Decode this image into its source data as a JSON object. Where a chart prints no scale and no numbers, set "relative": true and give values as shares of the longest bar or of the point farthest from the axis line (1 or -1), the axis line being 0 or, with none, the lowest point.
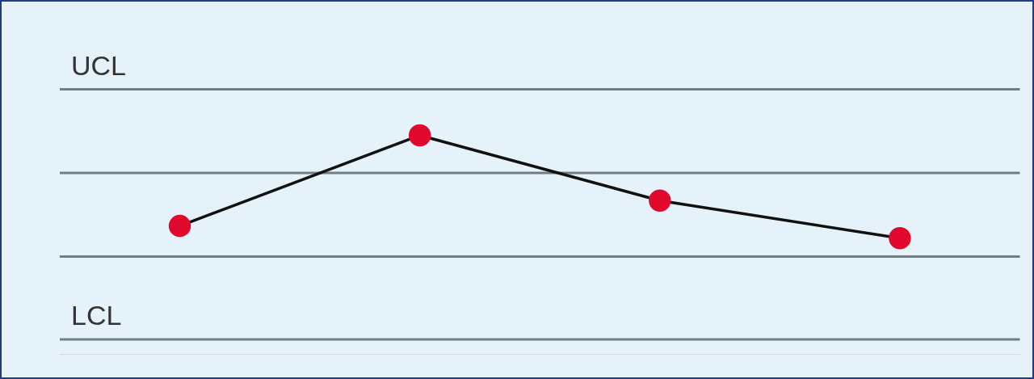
{
  "chart_data": {
    "type": "line",
    "categories": [
      null,
      null,
      null,
      null
    ],
    "series": [
      {
        "color": "#111111",
        "colors": [
          "#e0082c",
          "#e0082c",
          "#e0082c",
          "#e0082c"
        ],
        "values": [
          0.556,
          1,
          0.68,
          0.496
        ]
      }
    ],
    "relative": true,
    "marker": "circle",
    "line_style": "solid",
    "legend": false,
    "ref_lines": [
      {
        "axis": "y",
        "value": 1.226,
        "label": "UCL",
        "color": "#6e7e84"
      },
      {
        "axis": "y",
        "value": 0.816,
        "color": "#6e7e84"
      },
      {
        "axis": "y",
        "value": 0.406,
        "color": "#6e7e84"
      },
      {
        "axis": "y",
        "value": 0,
        "label": "LCL",
        "color": "#6e7e84"
      }
    ]
  }
}
